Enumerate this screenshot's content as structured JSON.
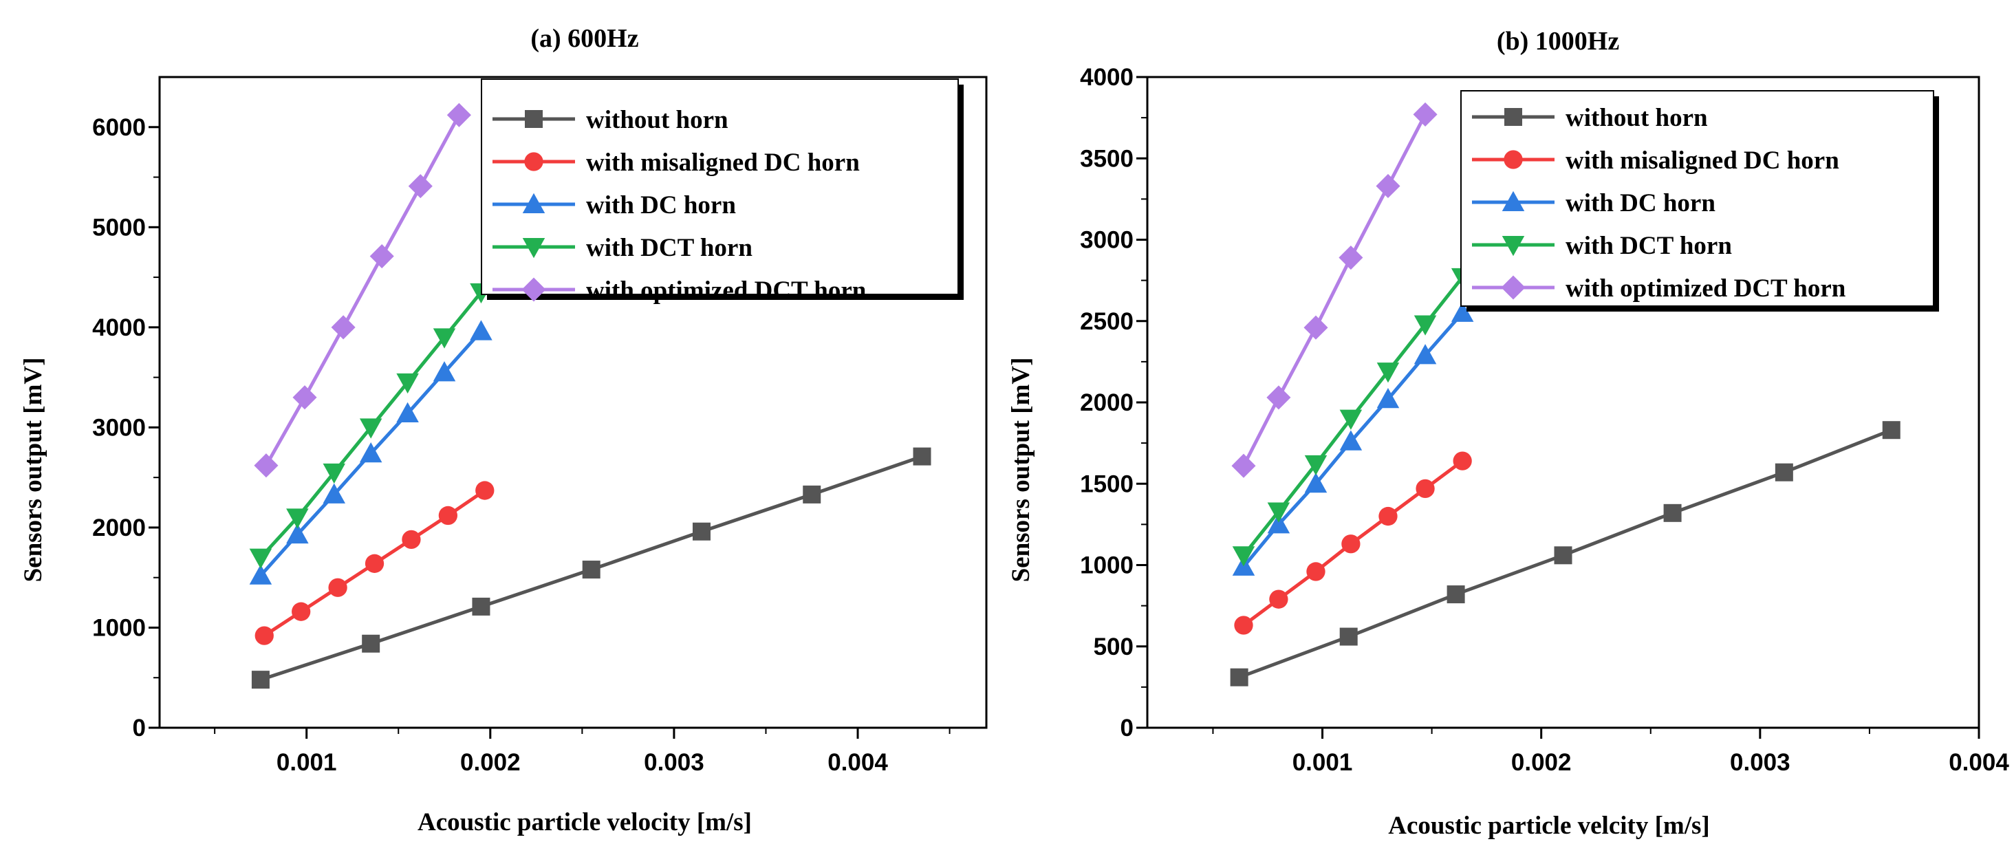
{
  "chart_data": [
    {
      "type": "line",
      "title": "(a) 600Hz",
      "xlabel": "Acoustic particle velocity [m/s]",
      "ylabel": "Sensors output [mV]",
      "xlim": [
        0.0002,
        0.0047
      ],
      "ylim": [
        0,
        6500
      ],
      "xticks": [
        0.001,
        0.002,
        0.003,
        0.004
      ],
      "xticklabels": [
        "0.001",
        "0.002",
        "0.003",
        "0.004"
      ],
      "yticks": [
        0,
        1000,
        2000,
        3000,
        4000,
        5000,
        6000
      ],
      "yticklabels": [
        "0",
        "1000",
        "2000",
        "3000",
        "4000",
        "5000",
        "6000"
      ],
      "legend_position": "top-right",
      "series": [
        {
          "name": "without horn",
          "color": "#555555",
          "marker": "square",
          "x": [
            0.00075,
            0.00135,
            0.00195,
            0.00255,
            0.00315,
            0.00375,
            0.00435
          ],
          "y": [
            480,
            840,
            1210,
            1580,
            1960,
            2330,
            2710
          ]
        },
        {
          "name": "with misaligned DC horn",
          "color": "#f23c3c",
          "marker": "circle",
          "x": [
            0.00077,
            0.00097,
            0.00117,
            0.00137,
            0.00157,
            0.00177,
            0.00197
          ],
          "y": [
            920,
            1160,
            1400,
            1640,
            1880,
            2120,
            2370
          ]
        },
        {
          "name": "with DC horn",
          "color": "#2f7ce0",
          "marker": "triangle-up",
          "x": [
            0.00075,
            0.00095,
            0.00115,
            0.00135,
            0.00155,
            0.00175,
            0.00195
          ],
          "y": [
            1520,
            1930,
            2330,
            2740,
            3140,
            3550,
            3960
          ]
        },
        {
          "name": "with DCT horn",
          "color": "#22b050",
          "marker": "triangle-down",
          "x": [
            0.00075,
            0.00095,
            0.00115,
            0.00135,
            0.00155,
            0.00175,
            0.00195
          ],
          "y": [
            1700,
            2100,
            2550,
            3000,
            3450,
            3900,
            4350
          ]
        },
        {
          "name": "with optimized DCT horn",
          "color": "#b37fe6",
          "marker": "diamond",
          "x": [
            0.00078,
            0.00099,
            0.0012,
            0.00141,
            0.00162,
            0.00183
          ],
          "y": [
            2620,
            3300,
            4000,
            4710,
            5410,
            6120
          ]
        }
      ]
    },
    {
      "type": "line",
      "title": "(b) 1000Hz",
      "xlabel": "Acoustic particle velcity [m/s]",
      "ylabel": "Sensors output [mV]",
      "xlim": [
        0.0002,
        0.004
      ],
      "ylim": [
        0,
        4000
      ],
      "xticks": [
        0.001,
        0.002,
        0.003,
        0.004
      ],
      "xticklabels": [
        "0.001",
        "0.002",
        "0.003",
        "0.004"
      ],
      "yticks": [
        0,
        500,
        1000,
        1500,
        2000,
        2500,
        3000,
        3500,
        4000
      ],
      "yticklabels": [
        "0",
        "500",
        "1000",
        "1500",
        "2000",
        "2500",
        "3000",
        "3500",
        "4000"
      ],
      "legend_position": "top-right",
      "series": [
        {
          "name": "without horn",
          "color": "#555555",
          "marker": "square",
          "x": [
            0.00062,
            0.00112,
            0.00161,
            0.0021,
            0.0026,
            0.00311,
            0.0036
          ],
          "y": [
            310,
            560,
            820,
            1060,
            1320,
            1570,
            1830
          ]
        },
        {
          "name": "with misaligned DC horn",
          "color": "#f23c3c",
          "marker": "circle",
          "x": [
            0.00064,
            0.0008,
            0.00097,
            0.00113,
            0.0013,
            0.00147,
            0.00164
          ],
          "y": [
            630,
            790,
            960,
            1130,
            1300,
            1470,
            1640
          ]
        },
        {
          "name": "with DC horn",
          "color": "#2f7ce0",
          "marker": "triangle-up",
          "x": [
            0.00064,
            0.0008,
            0.00097,
            0.00113,
            0.0013,
            0.00147,
            0.00164
          ],
          "y": [
            990,
            1250,
            1500,
            1760,
            2020,
            2290,
            2550
          ]
        },
        {
          "name": "with DCT horn",
          "color": "#22b050",
          "marker": "triangle-down",
          "x": [
            0.00064,
            0.0008,
            0.00097,
            0.00113,
            0.0013,
            0.00147,
            0.00164
          ],
          "y": [
            1060,
            1330,
            1620,
            1900,
            2190,
            2480,
            2770
          ]
        },
        {
          "name": "with optimized DCT horn",
          "color": "#b37fe6",
          "marker": "diamond",
          "x": [
            0.00064,
            0.0008,
            0.00097,
            0.00113,
            0.0013,
            0.00147
          ],
          "y": [
            1610,
            2030,
            2460,
            2890,
            3330,
            3770
          ]
        }
      ]
    }
  ]
}
